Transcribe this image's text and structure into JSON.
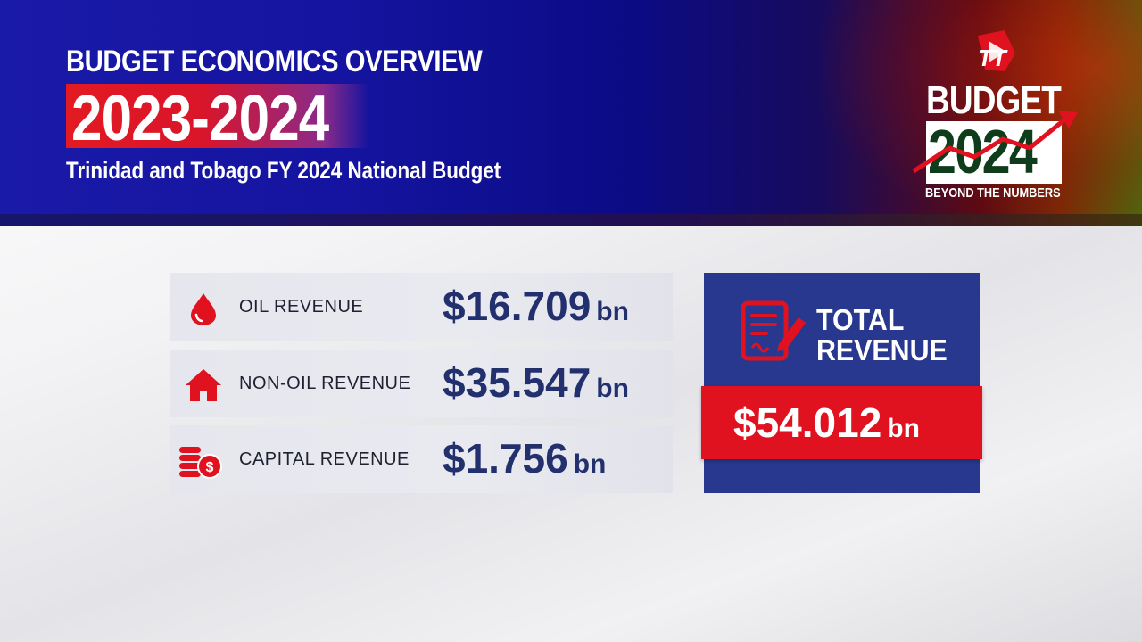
{
  "header": {
    "eyebrow": "BUDGET ECONOMICS OVERVIEW",
    "years": "2023-2024",
    "subtitle": "Trinidad and Tobago FY 2024 National Budget"
  },
  "logo": {
    "mark": "TT",
    "budget_word": "BUDGET",
    "year": "2024",
    "tagline": "BEYOND THE NUMBERS"
  },
  "revenue_items": [
    {
      "icon": "oil-drop-icon",
      "label": "OIL REVENUE",
      "value": "$16.709",
      "unit": "bn"
    },
    {
      "icon": "house-icon",
      "label": "NON-OIL REVENUE",
      "value": "$35.547",
      "unit": "bn"
    },
    {
      "icon": "coins-icon",
      "label": "CAPITAL REVENUE",
      "value": "$1.756",
      "unit": "bn"
    }
  ],
  "total": {
    "icon": "document-pen-icon",
    "label_line1": "TOTAL",
    "label_line2": "REVENUE",
    "value": "$54.012",
    "unit": "bn"
  },
  "colors": {
    "brand_red": "#e0121f",
    "brand_blue": "#27388e",
    "value_navy": "#23306e"
  }
}
